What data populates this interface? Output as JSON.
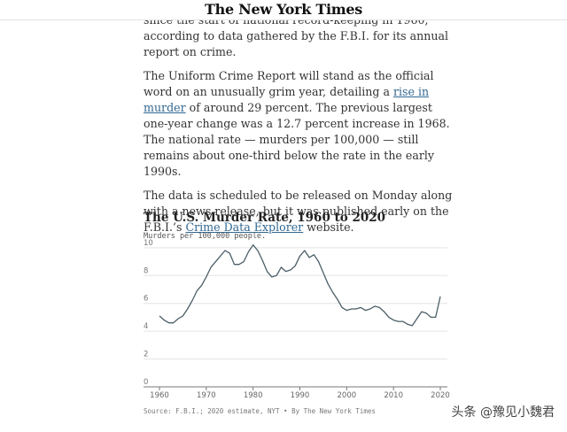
{
  "masthead": {
    "title": "The New York Times"
  },
  "article": {
    "p1": {
      "text": "since the start of national record-keeping in 1960, according to data gathered by the F.B.I. for its annual report on crime."
    },
    "p2": {
      "before": "The Uniform Crime Report will stand as the official word on an unusually grim year, detailing a ",
      "link": "rise in murder",
      "after": " of around 29 percent. The previous largest one-year change was a 12.7 percent increase in 1968. The national rate — murders per 100,000 — still remains about one-third below the rate in the early 1990s."
    },
    "p3": {
      "before": "The data is scheduled to be released on Monday along with a news release, but it was published early on the F.B.I.’s ",
      "link": "Crime Data Explorer",
      "after": " website."
    }
  },
  "chart_data": {
    "type": "line",
    "title": "The U.S. Murder Rate, 1960 to 2020",
    "subtitle": "Murders per 100,000 people.",
    "source": "Source: F.B.I.; 2020 estimate, NYT • By The New York Times",
    "xlabel": "",
    "ylabel": "",
    "xlim": [
      1960,
      2020
    ],
    "ylim": [
      0,
      10.5
    ],
    "x_ticks": [
      1960,
      1970,
      1980,
      1990,
      2000,
      2010,
      2020
    ],
    "y_ticks": [
      0,
      2,
      4,
      6,
      8,
      10
    ],
    "grid": "horizontal",
    "line_color": "#4a5e66",
    "series": [
      {
        "x": [
          1960,
          1961,
          1962,
          1963,
          1964,
          1965,
          1966,
          1967,
          1968,
          1969,
          1970,
          1971,
          1972,
          1973,
          1974,
          1975,
          1976,
          1977,
          1978,
          1979,
          1980,
          1981,
          1982,
          1983,
          1984,
          1985,
          1986,
          1987,
          1988,
          1989,
          1990,
          1991,
          1992,
          1993,
          1994,
          1995,
          1996,
          1997,
          1998,
          1999,
          2000,
          2001,
          2002,
          2003,
          2004,
          2005,
          2006,
          2007,
          2008,
          2009,
          2010,
          2011,
          2012,
          2013,
          2014,
          2015,
          2016,
          2017,
          2018,
          2019,
          2020
        ],
        "values": [
          5.1,
          4.8,
          4.6,
          4.6,
          4.9,
          5.1,
          5.6,
          6.2,
          6.9,
          7.3,
          7.9,
          8.6,
          9.0,
          9.4,
          9.8,
          9.6,
          8.8,
          8.8,
          9.0,
          9.7,
          10.2,
          9.8,
          9.1,
          8.3,
          7.9,
          8.0,
          8.6,
          8.3,
          8.4,
          8.7,
          9.4,
          9.8,
          9.3,
          9.5,
          9.0,
          8.2,
          7.4,
          6.8,
          6.3,
          5.7,
          5.5,
          5.6,
          5.6,
          5.7,
          5.5,
          5.6,
          5.8,
          5.7,
          5.4,
          5.0,
          4.8,
          4.7,
          4.7,
          4.5,
          4.4,
          4.9,
          5.4,
          5.3,
          5.0,
          5.0,
          6.5
        ]
      }
    ]
  },
  "watermark": {
    "text": "头条 @豫见小魏君"
  }
}
